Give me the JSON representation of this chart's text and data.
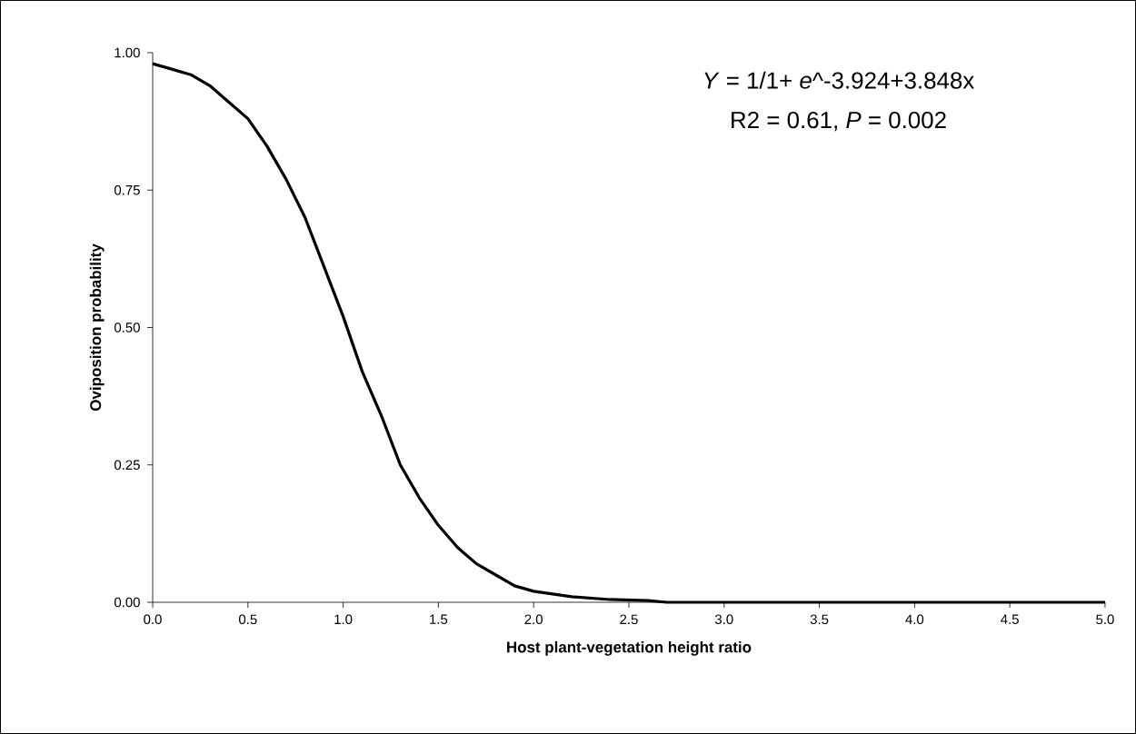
{
  "chart_data": {
    "type": "line",
    "xlabel": "Host plant-vegetation height ratio",
    "ylabel": "Oviposition probability",
    "annotations": [
      "*Y* = 1/1+ *e*^-3.924+3.848x",
      "R2 = 0.61, *P* = 0.002"
    ],
    "x": [
      0,
      0.1,
      0.2,
      0.3,
      0.4,
      0.5,
      0.6,
      0.7,
      0.8,
      0.9,
      1.0,
      1.1,
      1.2,
      1.3,
      1.4,
      1.5,
      1.6,
      1.7,
      1.8,
      1.9,
      2.0,
      2.2,
      2.4,
      2.6,
      2.7,
      3.0,
      4.0,
      5.0
    ],
    "values": [
      0.98,
      0.97,
      0.96,
      0.94,
      0.91,
      0.88,
      0.83,
      0.77,
      0.7,
      0.61,
      0.52,
      0.42,
      0.34,
      0.25,
      0.19,
      0.14,
      0.1,
      0.07,
      0.05,
      0.03,
      0.02,
      0.01,
      0.005,
      0.003,
      0,
      0,
      0,
      0
    ],
    "color": "#000000",
    "line_style": "solid",
    "xlim": [
      0,
      5
    ],
    "ylim": [
      0,
      1
    ],
    "xticks": [
      {
        "value": 0,
        "label": "0.0"
      },
      {
        "value": 0.5,
        "label": "0.5"
      },
      {
        "value": 1,
        "label": "1.0"
      },
      {
        "value": 1.5,
        "label": "1.5"
      },
      {
        "value": 2,
        "label": "2.0"
      },
      {
        "value": 2.5,
        "label": "2.5"
      },
      {
        "value": 3,
        "label": "3.0"
      },
      {
        "value": 3.5,
        "label": "3.5"
      },
      {
        "value": 4,
        "label": "4.0"
      },
      {
        "value": 4.5,
        "label": "4.5"
      },
      {
        "value": 5,
        "label": "5.0"
      }
    ],
    "yticks": [
      {
        "value": 0,
        "label": "0.00"
      },
      {
        "value": 0.25,
        "label": "0.25"
      },
      {
        "value": 0.5,
        "label": "0.50"
      },
      {
        "value": 0.75,
        "label": "0.75"
      },
      {
        "value": 1,
        "label": "1.00"
      }
    ]
  }
}
